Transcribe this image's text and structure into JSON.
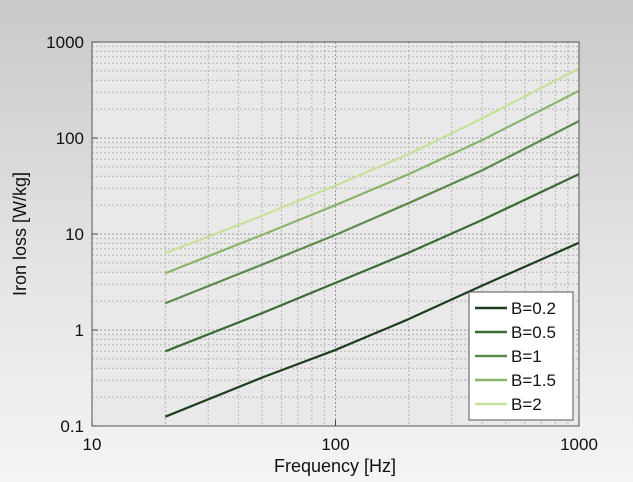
{
  "chart_data": {
    "type": "line",
    "title": "",
    "xlabel": "Frequency [Hz]",
    "ylabel": "Iron loss [W/kg]",
    "x_scale": "log",
    "y_scale": "log",
    "xlim": [
      10,
      1000
    ],
    "ylim": [
      0.1,
      1000
    ],
    "x_ticks": [
      "10",
      "100",
      "1000"
    ],
    "y_ticks": [
      "0.1",
      "1",
      "10",
      "100",
      "1000"
    ],
    "grid": true,
    "legend_position": "bottom-right",
    "series": [
      {
        "name": "B=0.2",
        "color": "#1f3d1f",
        "x": [
          20,
          50,
          100,
          200,
          400,
          1000
        ],
        "y": [
          0.125,
          0.32,
          0.62,
          1.3,
          2.9,
          8.1
        ]
      },
      {
        "name": "B=0.5",
        "color": "#3a6a35",
        "x": [
          20,
          50,
          100,
          200,
          400,
          1000
        ],
        "y": [
          0.6,
          1.5,
          3.1,
          6.4,
          14,
          42
        ]
      },
      {
        "name": "B=1",
        "color": "#5e8a4d",
        "x": [
          20,
          50,
          100,
          200,
          400,
          1000
        ],
        "y": [
          1.9,
          4.8,
          9.8,
          21,
          46,
          150
        ]
      },
      {
        "name": "B=1.5",
        "color": "#8cb36a",
        "x": [
          20,
          50,
          100,
          200,
          400,
          1000
        ],
        "y": [
          3.9,
          9.8,
          20,
          42,
          95,
          310
        ]
      },
      {
        "name": "B=2",
        "color": "#c7e09a",
        "x": [
          20,
          50,
          100,
          200,
          400,
          1000
        ],
        "y": [
          6.3,
          15.5,
          32,
          68,
          160,
          530
        ]
      }
    ]
  }
}
